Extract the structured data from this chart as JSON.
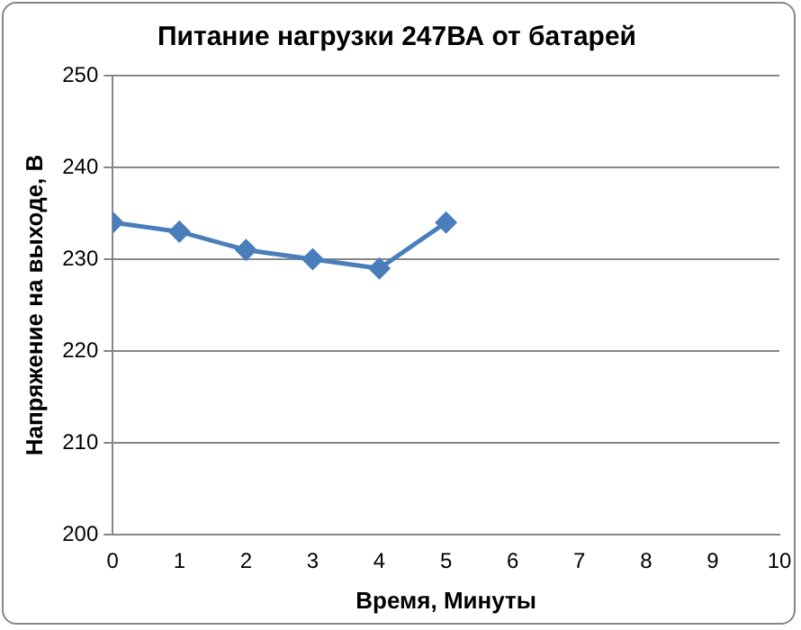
{
  "chart_data": {
    "type": "line",
    "title": "Питание нагрузки 247ВА от батарей",
    "xlabel": "Время, Минуты",
    "ylabel": "Напряжение на выходе, В",
    "x": [
      0,
      1,
      2,
      3,
      4,
      5
    ],
    "series": [
      {
        "color": "#4a7ebb",
        "values": [
          234,
          233,
          231,
          230,
          229,
          234
        ]
      }
    ],
    "xlim": [
      0,
      10
    ],
    "xticks": [
      0,
      1,
      2,
      3,
      4,
      5,
      6,
      7,
      8,
      9,
      10
    ],
    "ylim": [
      200,
      250
    ],
    "yticks": [
      200,
      210,
      220,
      230,
      240,
      250
    ],
    "grid": "y",
    "legend": false,
    "marker": "diamond",
    "line_style": "solid"
  }
}
